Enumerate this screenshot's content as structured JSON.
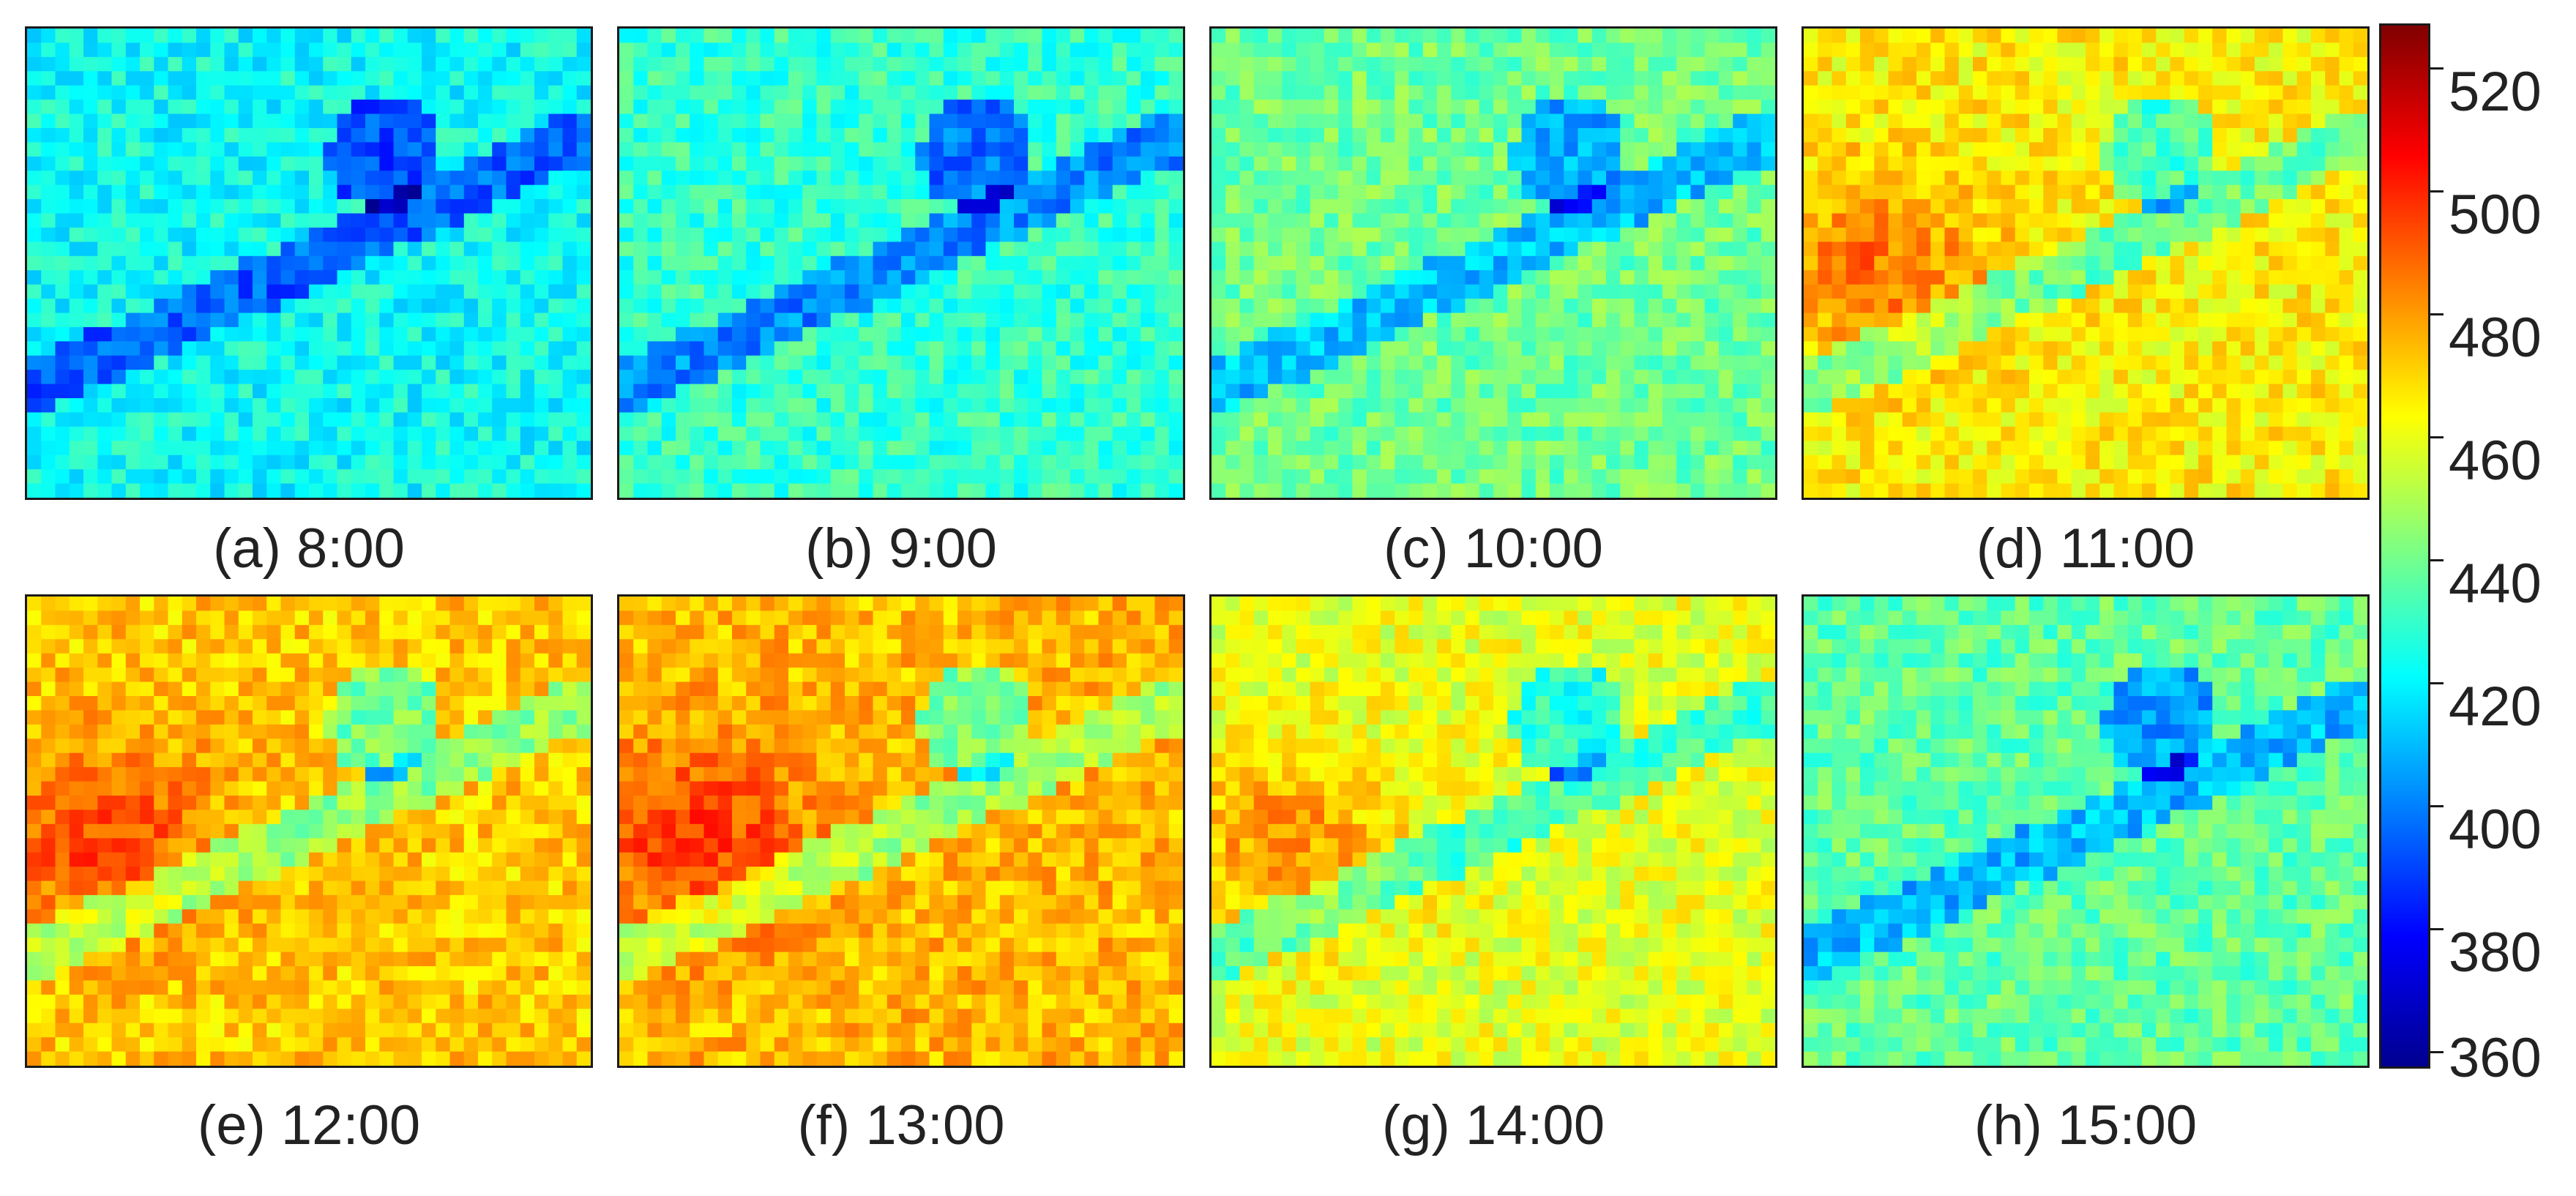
{
  "figure": {
    "panels": [
      {
        "caption": "(a) 8:00",
        "mean_value": 425
      },
      {
        "caption": "(b) 9:00",
        "mean_value": 432
      },
      {
        "caption": "(c) 10:00",
        "mean_value": 442
      },
      {
        "caption": "(d) 11:00",
        "mean_value": 468
      },
      {
        "caption": "(e) 12:00",
        "mean_value": 475
      },
      {
        "caption": "(f) 13:00",
        "mean_value": 478
      },
      {
        "caption": "(g) 14:00",
        "mean_value": 462
      },
      {
        "caption": "(h) 15:00",
        "mean_value": 440
      }
    ],
    "colorbar": {
      "min": 360,
      "max": 530,
      "ticks": [
        "520",
        "500",
        "480",
        "460",
        "440",
        "420",
        "400",
        "380",
        "360"
      ],
      "colormap": [
        "#00008f",
        "#0000ff",
        "#0080ff",
        "#00ffff",
        "#80ff80",
        "#ffff00",
        "#ff8000",
        "#ff0000",
        "#800000"
      ]
    }
  }
}
